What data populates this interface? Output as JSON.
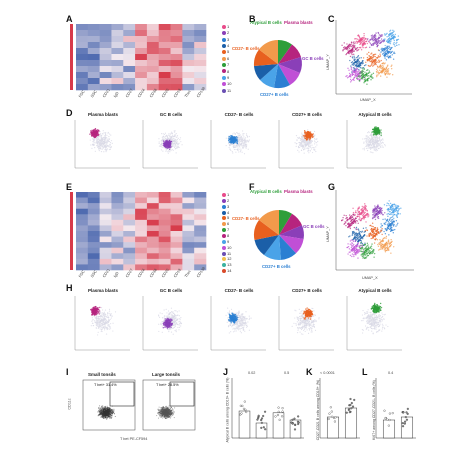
{
  "panels": {
    "A": "A",
    "B": "B",
    "C": "C",
    "D": "D",
    "E": "E",
    "F": "F",
    "G": "G",
    "H": "H",
    "I": "I",
    "J": "J",
    "K": "K",
    "L": "L"
  },
  "heatmap_top": {
    "markers": [
      "FSC",
      "SSC",
      "CD21",
      "IgD",
      "CD27",
      "CD24",
      "CD38",
      "CD20",
      "CD19",
      "Tbet",
      "CD138"
    ],
    "cluster_ids": [
      "1",
      "2",
      "3",
      "4",
      "5",
      "6",
      "7",
      "8",
      "9",
      "10",
      "11",
      "12",
      "13",
      "14"
    ]
  },
  "heatmap_bottom": {
    "markers": [
      "FSC",
      "SSC",
      "CD21",
      "IgD",
      "CD27",
      "CD24",
      "CD38",
      "CD20",
      "CD19",
      "Tbet",
      "CD138"
    ],
    "cluster_ids": [
      "1",
      "2",
      "3",
      "4",
      "5",
      "6",
      "7",
      "8",
      "9",
      "10",
      "11",
      "12",
      "13",
      "14"
    ]
  },
  "pie_top": {
    "labels": {
      "atypical": "Atypical B cells",
      "plasma": "Plasma blasts",
      "cd27neg": "CD27- B cells",
      "gc": "GC B cells",
      "cd27pos": "CD27+ B cells"
    }
  },
  "pie_bottom": {
    "labels": {
      "atypical": "Atypical B cells",
      "plasma": "Plasma blasts",
      "cd27neg": "CD27- B cells",
      "gc": "GC B cells",
      "cd27pos": "CD27+ B cells"
    }
  },
  "umap_axes": {
    "x": "UMAP_X",
    "y": "UMAP_Y"
  },
  "row_D": [
    "Plasma blasts",
    "GC B cells",
    "CD27- B cells",
    "CD27+ B cells",
    "Atypical B cells"
  ],
  "row_H": [
    "Plasma blasts",
    "GC B cells",
    "CD27- B cells",
    "CD27+ B cells",
    "Atypical B cells"
  ],
  "panel_I": {
    "left_title": "Small tonsils",
    "right_title": "Large tonsils",
    "left_gate": "T bet+ 31.4%",
    "right_gate": "T bet+ 28.5%",
    "x_axis": "T bet PE-CF594",
    "y_axis": "CD11c"
  },
  "bar_panels": {
    "J": {
      "ylabel": "Atypical B cells among CD19+ B cells (%)",
      "p1": "0.02",
      "p2": "0.5",
      "cats": [
        "Small tonsils",
        "Large tonsils",
        "Small tonsils",
        "Large tonsils"
      ]
    },
    "K": {
      "ylabel": "CD27-CD21 B cells among CD19+ (%)",
      "p": "< 0.0001",
      "cats": [
        "Small tonsils",
        "Large tonsils"
      ]
    },
    "L": {
      "ylabel": "Ki67+ among CD27-CD21- B cells (%)",
      "p": "0.4",
      "cats": [
        "Small tonsils",
        "Large tonsils"
      ]
    }
  },
  "colors": {
    "atypical": "#2e9e3a",
    "plasma": "#b6247e",
    "cd27neg": "#e8601f",
    "gc": "#8a3fb8",
    "cd27pos": "#2b7fd2",
    "heat_high": "#d73a4a",
    "heat_low": "#3a5aa8"
  }
}
